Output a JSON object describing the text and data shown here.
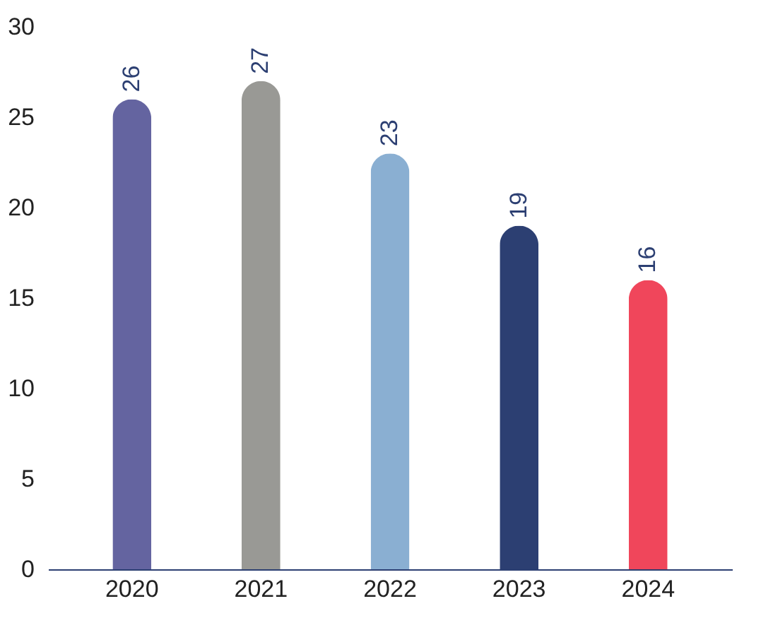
{
  "chart_data": {
    "type": "bar",
    "categories": [
      "2020",
      "2021",
      "2022",
      "2023",
      "2024"
    ],
    "values": [
      26,
      27,
      23,
      19,
      16
    ],
    "colors": [
      "#6464a0",
      "#999995",
      "#8aafd2",
      "#2c3f72",
      "#f0465b"
    ],
    "ylim": [
      0,
      30
    ],
    "yticks": [
      0,
      5,
      10,
      15,
      20,
      25,
      30
    ],
    "grid": false,
    "data_labels": true
  }
}
